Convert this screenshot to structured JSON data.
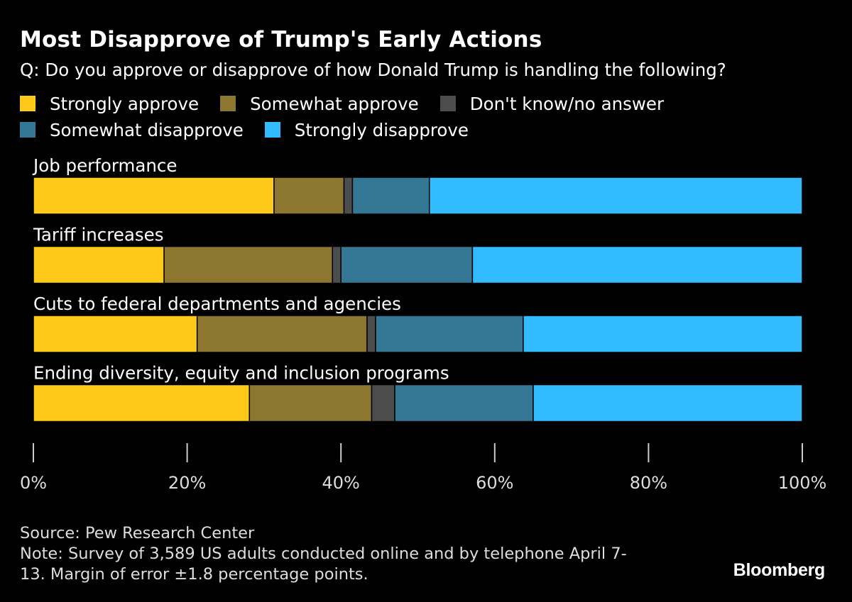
{
  "chart_data": {
    "type": "bar",
    "orientation": "horizontal",
    "stacked": true,
    "title": "Most Disapprove of Trump's Early Actions",
    "subtitle": "Q: Do you approve or disapprove of how Donald Trump is handling the following?",
    "categories": [
      "Job performance",
      "Tariff increases",
      "Cuts to federal departments and agencies",
      "Ending diversity, equity and inclusion programs"
    ],
    "series": [
      {
        "name": "Strongly approve",
        "color": "#ffc91a",
        "values": [
          31.3,
          17.0,
          21.3,
          28.1
        ]
      },
      {
        "name": "Somewhat approve",
        "color": "#8c7630",
        "values": [
          9.1,
          21.9,
          22.1,
          15.9
        ]
      },
      {
        "name": "Don't know/no answer",
        "color": "#4d4d4d",
        "values": [
          1.1,
          1.1,
          1.1,
          3.0
        ]
      },
      {
        "name": "Somewhat disapprove",
        "color": "#347795",
        "values": [
          10.0,
          17.1,
          19.2,
          18.0
        ]
      },
      {
        "name": "Strongly disapprove",
        "color": "#33bbff",
        "values": [
          48.5,
          42.9,
          36.3,
          35.0
        ]
      }
    ],
    "xlim": [
      0,
      100
    ],
    "x_ticks": [
      "0%",
      "20%",
      "40%",
      "60%",
      "80%",
      "100%"
    ],
    "legend_position": "top",
    "grid": false
  },
  "footer": {
    "source": "Source: Pew Research Center",
    "note_line1": "Note: Survey of 3,589 US adults conducted online and by telephone April 7-",
    "note_line2": "13. Margin of error ±1.8 percentage points.",
    "brand": "Bloomberg"
  }
}
